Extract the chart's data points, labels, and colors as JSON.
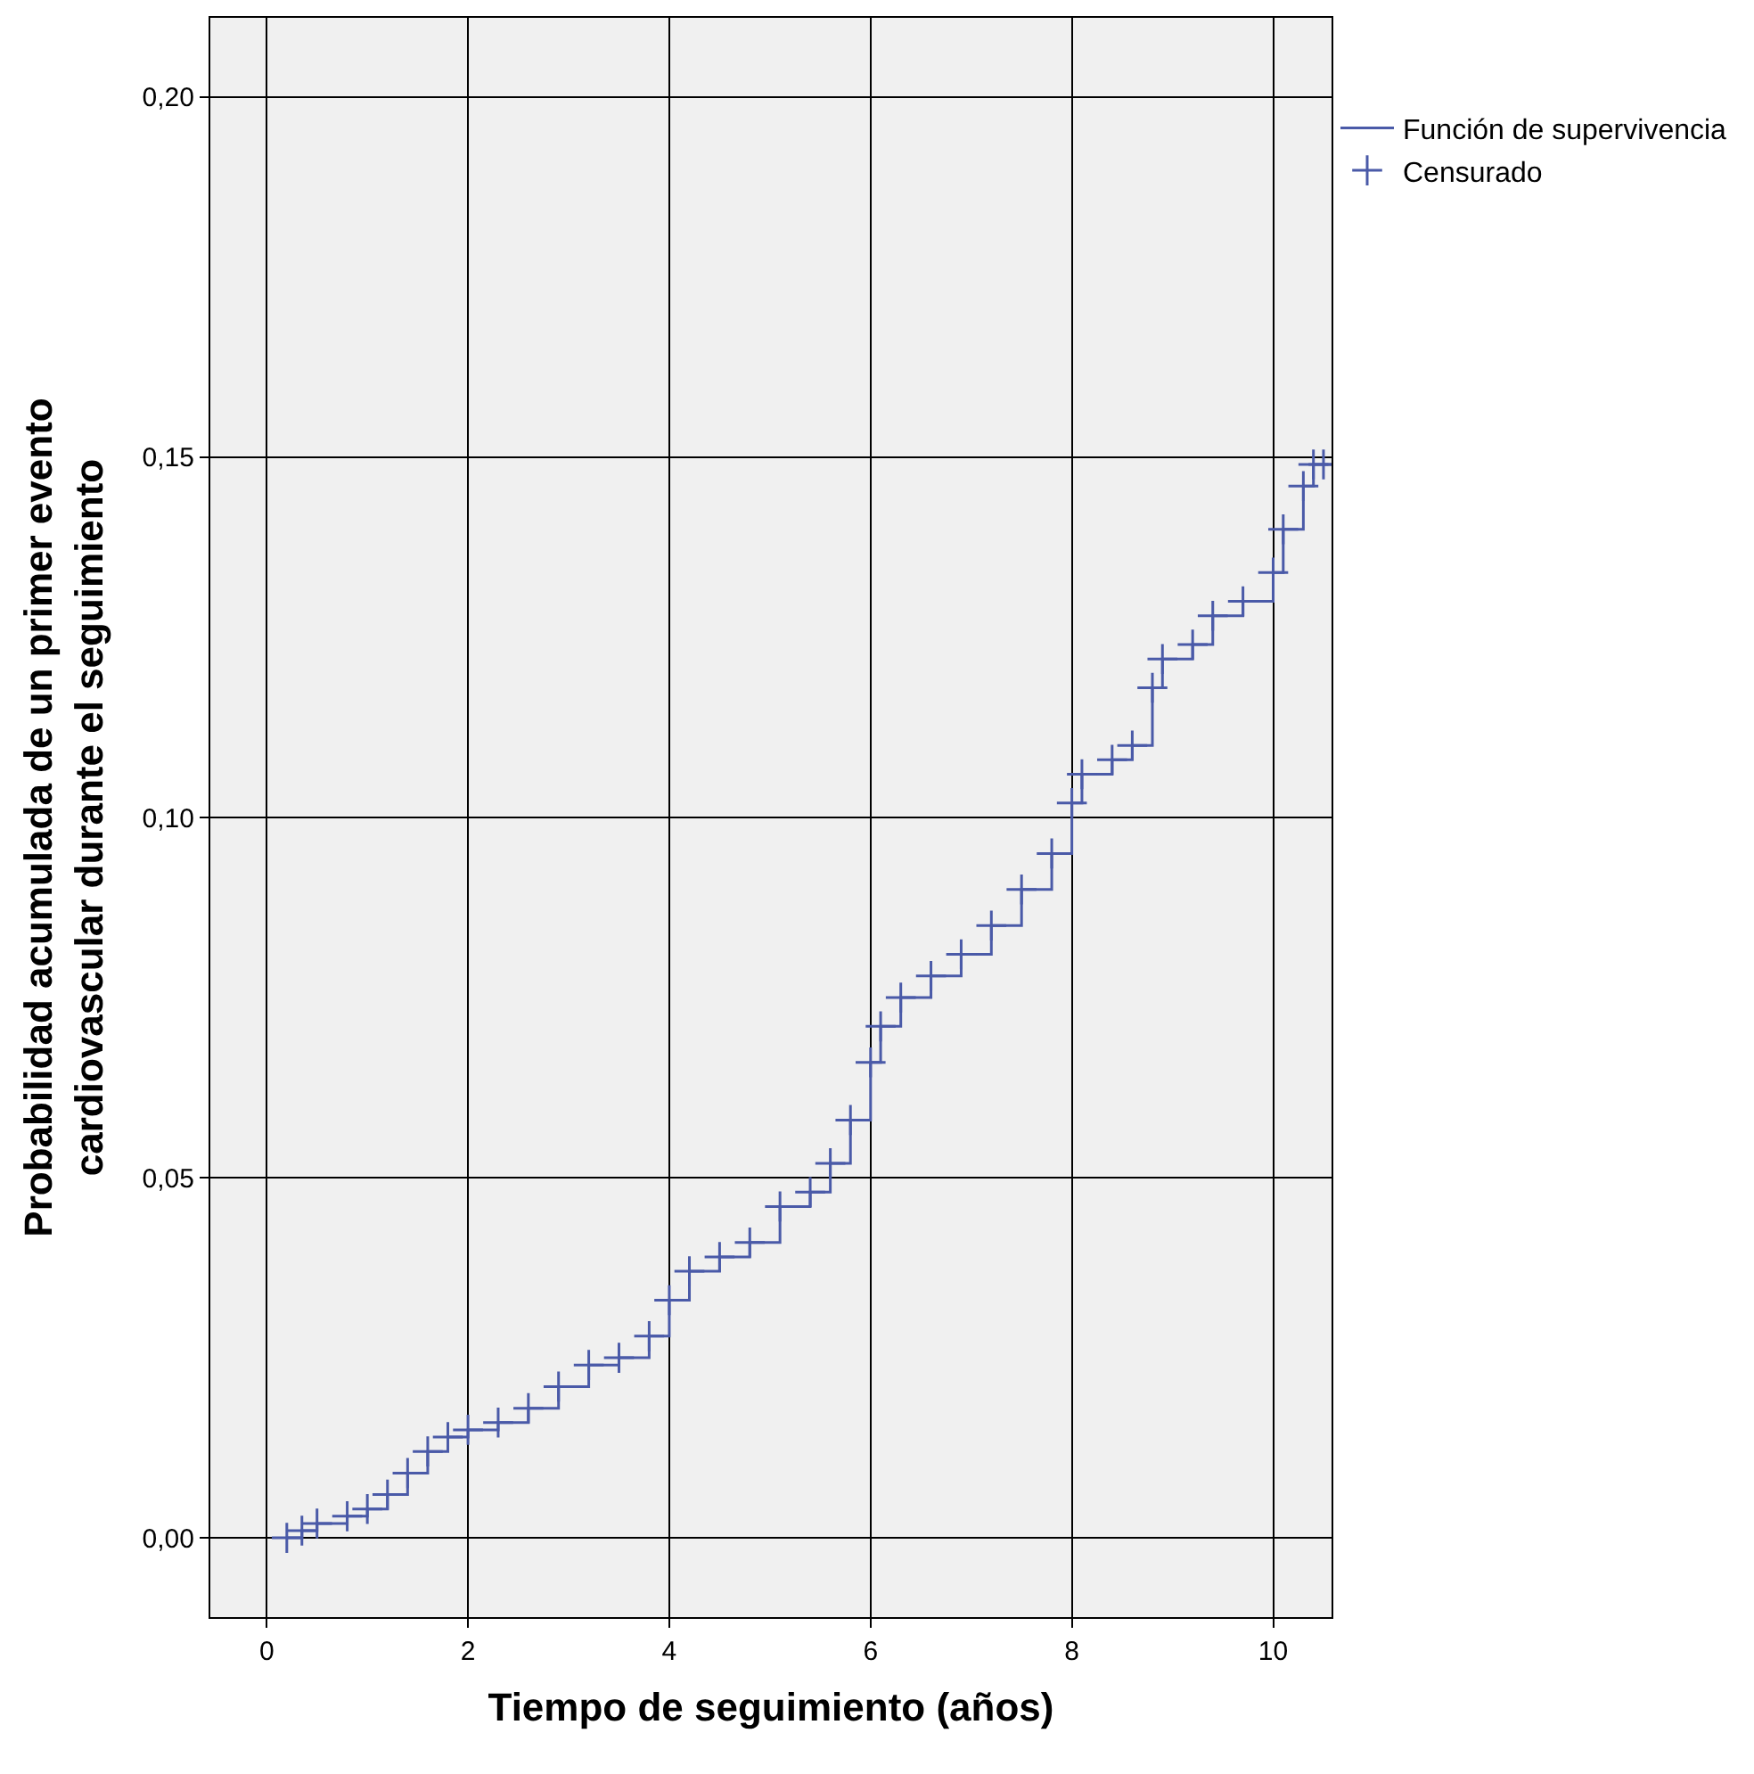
{
  "chart_data": {
    "type": "step",
    "xlabel": "Tiempo de seguimiento (años)",
    "ylabel": "Probabilidad acumulada de un primer evento\ncardiovascular durante el seguimiento",
    "xlim": [
      -0.56,
      10.58
    ],
    "ylim": [
      -0.011,
      0.211
    ],
    "xticks": [
      0,
      2,
      4,
      6,
      8,
      10
    ],
    "yticks": [
      {
        "value": 0,
        "label": "0,00"
      },
      {
        "value": 0.05,
        "label": "0,05"
      },
      {
        "value": 0.1,
        "label": "0,10"
      },
      {
        "value": 0.15,
        "label": "0,15"
      },
      {
        "value": 0.2,
        "label": "0,20"
      }
    ],
    "grid": true,
    "legend": "top right",
    "series": [
      {
        "name": "Función de supervivencia",
        "color": "#4a5aa8",
        "x": [
          0.2,
          0.35,
          0.5,
          0.8,
          1.0,
          1.2,
          1.4,
          1.6,
          1.8,
          2.0,
          2.3,
          2.6,
          2.9,
          3.2,
          3.5,
          3.8,
          4.0,
          4.2,
          4.5,
          4.8,
          5.1,
          5.4,
          5.6,
          5.8,
          6.0,
          6.1,
          6.3,
          6.6,
          6.9,
          7.2,
          7.5,
          7.8,
          8.0,
          8.1,
          8.4,
          8.6,
          8.8,
          8.9,
          9.2,
          9.4,
          9.7,
          10.0,
          10.1,
          10.3,
          10.4,
          10.58
        ],
        "values": [
          0,
          0.001,
          0.002,
          0.003,
          0.004,
          0.006,
          0.009,
          0.012,
          0.014,
          0.015,
          0.016,
          0.018,
          0.021,
          0.024,
          0.025,
          0.028,
          0.033,
          0.037,
          0.039,
          0.041,
          0.046,
          0.048,
          0.052,
          0.058,
          0.066,
          0.071,
          0.075,
          0.078,
          0.081,
          0.085,
          0.09,
          0.095,
          0.102,
          0.106,
          0.108,
          0.11,
          0.118,
          0.122,
          0.124,
          0.128,
          0.13,
          0.134,
          0.14,
          0.146,
          0.149,
          0.149
        ]
      },
      {
        "name": "Censurado",
        "type": "scatter",
        "marker": "cross",
        "color": "#4a5aa8",
        "x": [
          0.2,
          0.35,
          0.5,
          0.8,
          1.0,
          1.2,
          1.4,
          1.6,
          1.8,
          2.0,
          2.3,
          2.6,
          2.9,
          3.2,
          3.5,
          3.8,
          4.0,
          4.2,
          4.5,
          4.8,
          5.1,
          5.4,
          5.6,
          5.8,
          6.0,
          6.1,
          6.3,
          6.6,
          6.9,
          7.2,
          7.5,
          7.8,
          8.0,
          8.1,
          8.4,
          8.6,
          8.8,
          8.9,
          9.2,
          9.4,
          9.7,
          10.0,
          10.1,
          10.3,
          10.4,
          10.5
        ],
        "values": [
          0,
          0.001,
          0.002,
          0.003,
          0.004,
          0.006,
          0.009,
          0.012,
          0.014,
          0.015,
          0.016,
          0.018,
          0.021,
          0.024,
          0.025,
          0.028,
          0.033,
          0.037,
          0.039,
          0.041,
          0.046,
          0.048,
          0.052,
          0.058,
          0.066,
          0.071,
          0.075,
          0.078,
          0.081,
          0.085,
          0.09,
          0.095,
          0.102,
          0.106,
          0.108,
          0.11,
          0.118,
          0.122,
          0.124,
          0.128,
          0.13,
          0.134,
          0.14,
          0.146,
          0.149,
          0.149
        ]
      }
    ]
  }
}
